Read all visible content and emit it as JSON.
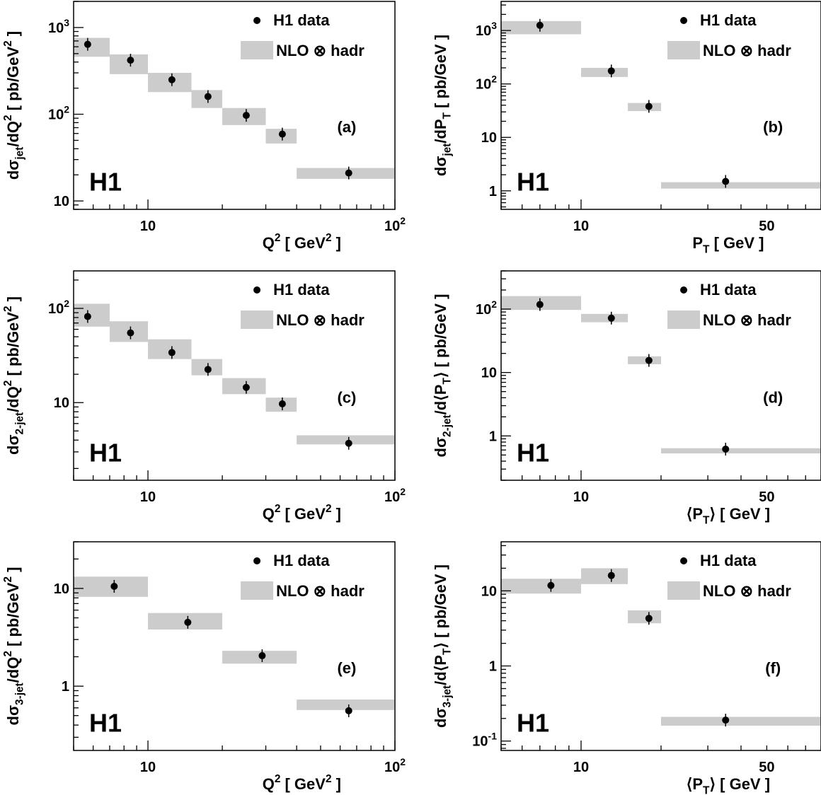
{
  "figure": {
    "experiment_label": "H1"
  },
  "chart_data": [
    {
      "panel": "(a)",
      "type": "scatter",
      "xlabel": "Q^2 [ GeV^2 ]",
      "ylabel": "dσ_jet/dQ^2 [ pb/GeV^2 ]",
      "x_scale": "log",
      "y_scale": "log",
      "xlim": [
        5,
        100
      ],
      "ylim": [
        8,
        2000
      ],
      "x_tick_labels": [
        "10",
        "10^2"
      ],
      "y_tick_labels": [
        "10",
        "10^2",
        "10^3"
      ],
      "legend": [
        "H1 data",
        "NLO ⊗ hadr"
      ],
      "legend_position": "top-right",
      "series": [
        {
          "name": "H1 data",
          "x": [
            5.7,
            8.5,
            12.5,
            17.5,
            25,
            35,
            65
          ],
          "y": [
            640,
            420,
            250,
            160,
            97,
            59,
            21
          ]
        },
        {
          "name": "NLO ⊗ hadr",
          "bins": [
            [
              5,
              7
            ],
            [
              7,
              10
            ],
            [
              10,
              15
            ],
            [
              15,
              20
            ],
            [
              20,
              30
            ],
            [
              30,
              40
            ],
            [
              40,
              100
            ]
          ],
          "low": [
            460,
            290,
            180,
            118,
            75,
            46,
            18
          ],
          "high": [
            760,
            490,
            300,
            190,
            118,
            68,
            24
          ]
        }
      ]
    },
    {
      "panel": "(b)",
      "type": "scatter",
      "xlabel": "P_T [ GeV ]",
      "ylabel": "dσ_jet/dP_T [ pb/GeV ]",
      "x_scale": "log",
      "y_scale": "log",
      "xlim": [
        5,
        80
      ],
      "ylim": [
        0.45,
        3500
      ],
      "x_tick_labels": [
        "10",
        "50"
      ],
      "y_tick_labels": [
        "1",
        "10",
        "10^2",
        "10^3"
      ],
      "legend": [
        "H1 data",
        "NLO ⊗ hadr"
      ],
      "legend_position": "top-right",
      "series": [
        {
          "name": "H1 data",
          "x": [
            7,
            13,
            18,
            35
          ],
          "y": [
            1250,
            175,
            38,
            1.5
          ]
        },
        {
          "name": "NLO ⊗ hadr",
          "bins": [
            [
              5,
              10
            ],
            [
              10,
              15
            ],
            [
              15,
              20
            ],
            [
              20,
              80
            ]
          ],
          "low": [
            850,
            135,
            31,
            1.1
          ],
          "high": [
            1500,
            200,
            44,
            1.45
          ]
        }
      ]
    },
    {
      "panel": "(c)",
      "type": "scatter",
      "xlabel": "Q^2 [ GeV^2 ]",
      "ylabel": "dσ_2-jet/dQ^2 [ pb/GeV^2 ]",
      "x_scale": "log",
      "y_scale": "log",
      "xlim": [
        5,
        100
      ],
      "ylim": [
        1.5,
        250
      ],
      "x_tick_labels": [
        "10",
        "10^2"
      ],
      "y_tick_labels": [
        "10",
        "10^2"
      ],
      "legend": [
        "H1 data",
        "NLO ⊗ hadr"
      ],
      "legend_position": "top-right",
      "series": [
        {
          "name": "H1 data",
          "x": [
            5.7,
            8.5,
            12.5,
            17.5,
            25,
            35,
            65
          ],
          "y": [
            82,
            55,
            34,
            22.5,
            14.5,
            9.7,
            3.7
          ]
        },
        {
          "name": "NLO ⊗ hadr",
          "bins": [
            [
              5,
              7
            ],
            [
              7,
              10
            ],
            [
              10,
              15
            ],
            [
              15,
              20
            ],
            [
              20,
              30
            ],
            [
              30,
              40
            ],
            [
              40,
              100
            ]
          ],
          "low": [
            64,
            44,
            29,
            19.5,
            12.3,
            8.0,
            3.6
          ],
          "high": [
            112,
            73,
            47,
            29,
            18.2,
            11.3,
            4.5
          ]
        }
      ]
    },
    {
      "panel": "(d)",
      "type": "scatter",
      "xlabel": "⟨P_T⟩ [ GeV ]",
      "ylabel": "dσ_2-jet/d⟨P_T⟩ [ pb/GeV ]",
      "x_scale": "log",
      "y_scale": "log",
      "xlim": [
        5,
        80
      ],
      "ylim": [
        0.2,
        400
      ],
      "x_tick_labels": [
        "10",
        "50"
      ],
      "y_tick_labels": [
        "1",
        "10",
        "10^2"
      ],
      "legend": [
        "H1 data",
        "NLO ⊗ hadr"
      ],
      "legend_position": "top-right",
      "series": [
        {
          "name": "H1 data",
          "x": [
            7,
            13,
            18,
            35
          ],
          "y": [
            118,
            72,
            15.5,
            0.62
          ]
        },
        {
          "name": "NLO ⊗ hadr",
          "bins": [
            [
              5,
              10
            ],
            [
              10,
              15
            ],
            [
              15,
              20
            ],
            [
              20,
              80
            ]
          ],
          "low": [
            97,
            62,
            13.5,
            0.53
          ],
          "high": [
            160,
            84,
            18,
            0.64
          ]
        }
      ]
    },
    {
      "panel": "(e)",
      "type": "scatter",
      "xlabel": "Q^2 [ GeV^2 ]",
      "ylabel": "dσ_3-jet/dQ^2 [ pb/GeV^2 ]",
      "x_scale": "log",
      "y_scale": "log",
      "xlim": [
        5,
        100
      ],
      "ylim": [
        0.22,
        30
      ],
      "x_tick_labels": [
        "10",
        "10^2"
      ],
      "y_tick_labels": [
        "1",
        "10"
      ],
      "legend": [
        "H1 data",
        "NLO ⊗ hadr"
      ],
      "legend_position": "top-right",
      "series": [
        {
          "name": "H1 data",
          "x": [
            7.3,
            14.5,
            29,
            65
          ],
          "y": [
            10.5,
            4.5,
            2.05,
            0.56
          ]
        },
        {
          "name": "NLO ⊗ hadr",
          "bins": [
            [
              5,
              10
            ],
            [
              10,
              20
            ],
            [
              20,
              40
            ],
            [
              40,
              100
            ]
          ],
          "low": [
            8.2,
            3.8,
            1.7,
            0.57
          ],
          "high": [
            13.2,
            5.6,
            2.3,
            0.73
          ]
        }
      ]
    },
    {
      "panel": "(f)",
      "type": "scatter",
      "xlabel": "⟨P_T⟩ [ GeV ]",
      "ylabel": "dσ_3-jet/d⟨P_T⟩ [ pb/GeV ]",
      "x_scale": "log",
      "y_scale": "log",
      "xlim": [
        5,
        80
      ],
      "ylim": [
        0.075,
        45
      ],
      "x_tick_labels": [
        "10",
        "50"
      ],
      "y_tick_labels": [
        "10^-1",
        "1",
        "10"
      ],
      "legend": [
        "H1 data",
        "NLO ⊗ hadr"
      ],
      "legend_position": "top-right",
      "series": [
        {
          "name": "H1 data",
          "x": [
            7.7,
            13,
            18,
            35
          ],
          "y": [
            11.8,
            16,
            4.3,
            0.19
          ]
        },
        {
          "name": "NLO ⊗ hadr",
          "bins": [
            [
              5,
              10
            ],
            [
              10,
              15
            ],
            [
              15,
              20
            ],
            [
              20,
              80
            ]
          ],
          "low": [
            9.2,
            12.3,
            3.7,
            0.16
          ],
          "high": [
            14.5,
            20,
            5.5,
            0.21
          ]
        }
      ]
    }
  ]
}
